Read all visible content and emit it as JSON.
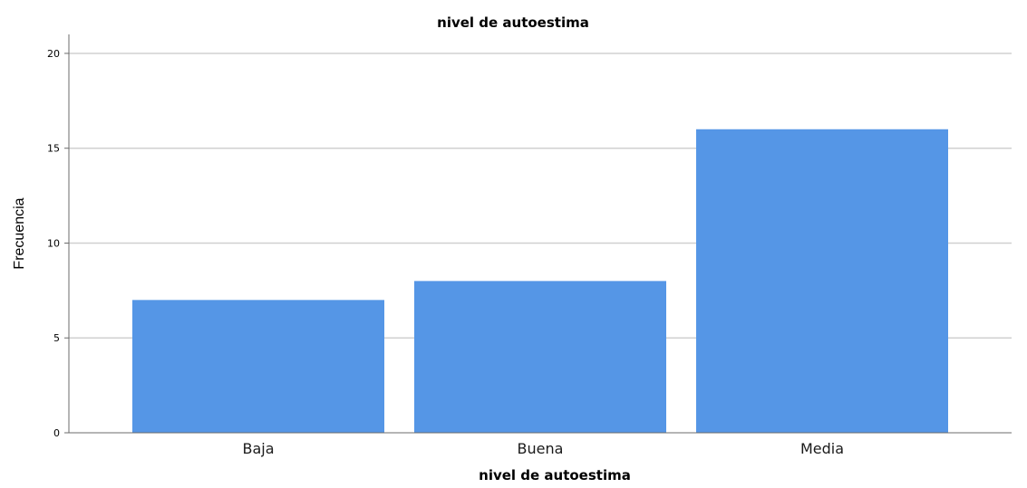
{
  "chart_data": {
    "type": "bar",
    "title": "nivel de autoestima",
    "xlabel": "nivel de autoestima",
    "ylabel": "Frecuencia",
    "categories": [
      "Baja",
      "Buena",
      "Media"
    ],
    "values": [
      7,
      8,
      16
    ],
    "ylim": [
      0,
      21
    ],
    "yticks": [
      "0",
      "5",
      "10",
      "15",
      "20"
    ],
    "ytick_values": [
      0,
      5,
      10,
      15,
      20
    ],
    "grid": true,
    "legend": false
  },
  "colors": {
    "bar": "#5596e6",
    "grid": "#d0d0d0",
    "axis": "#6b6b6b"
  }
}
